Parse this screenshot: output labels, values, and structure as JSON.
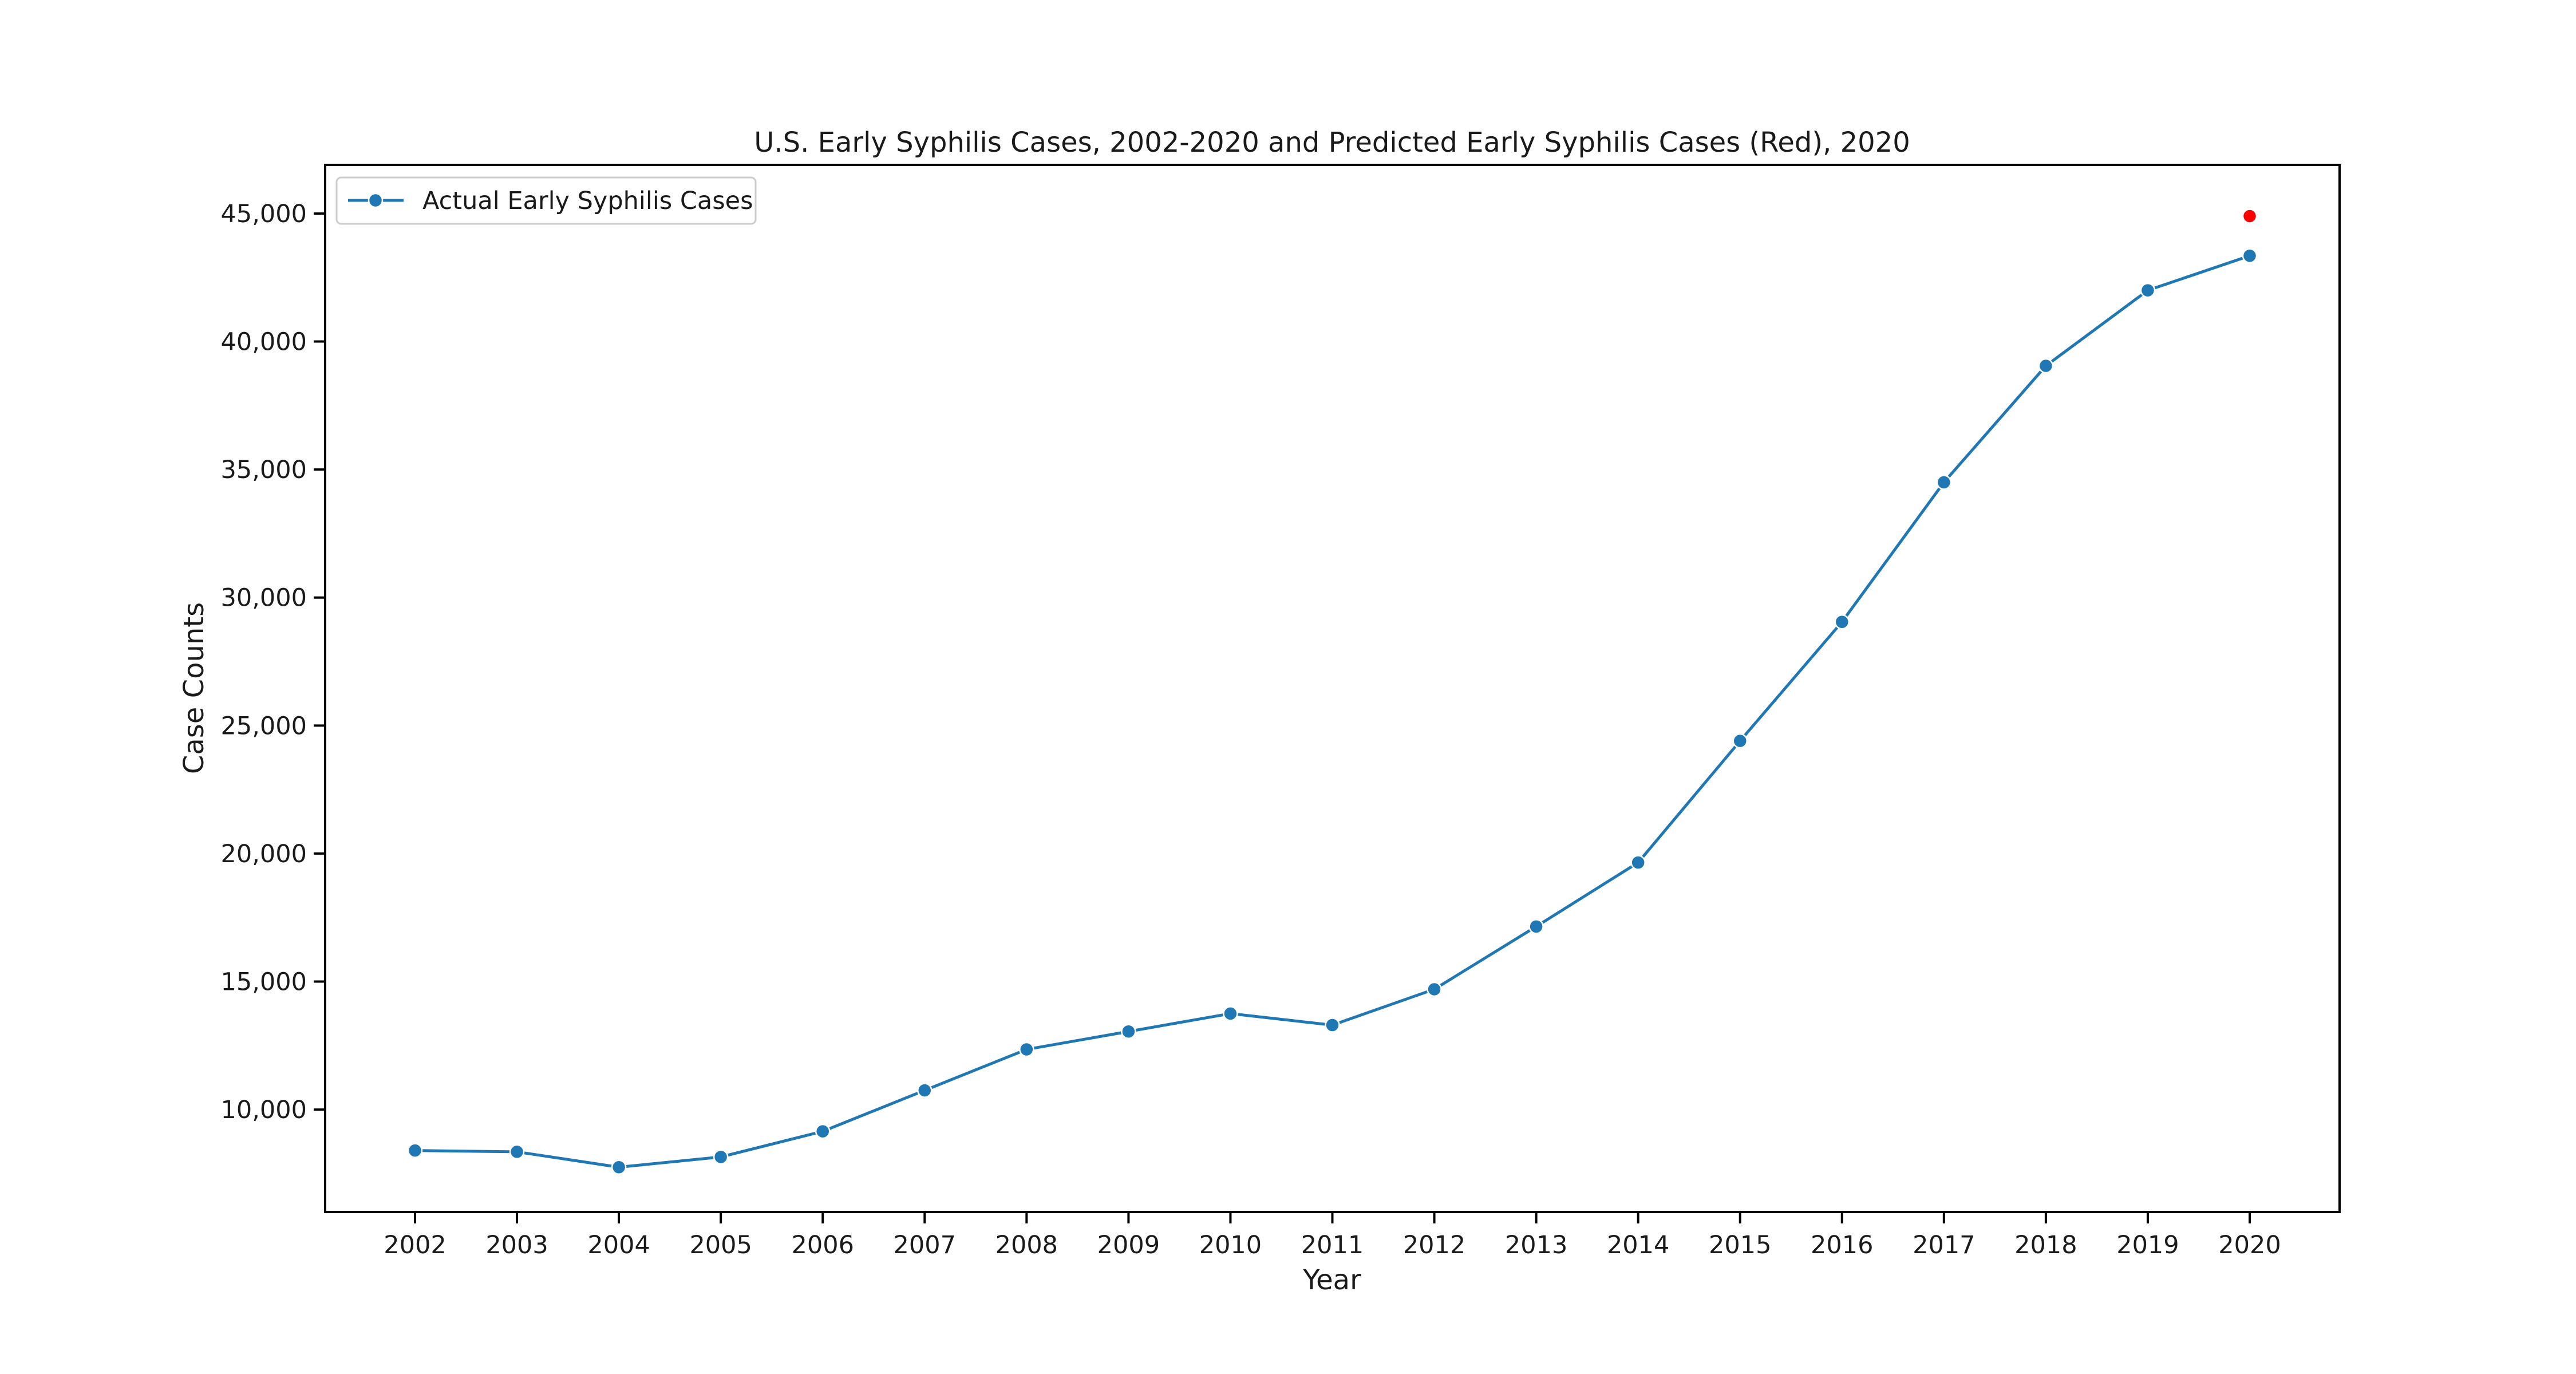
{
  "chart_data": {
    "type": "line",
    "title": "U.S. Early Syphilis Cases, 2002-2020 and Predicted Early Syphilis Cases (Red), 2020",
    "xlabel": "Year",
    "ylabel": "Case Counts",
    "categories": [
      "2002",
      "2003",
      "2004",
      "2005",
      "2006",
      "2007",
      "2008",
      "2009",
      "2010",
      "2011",
      "2012",
      "2013",
      "2014",
      "2015",
      "2016",
      "2017",
      "2018",
      "2019",
      "2020"
    ],
    "series": [
      {
        "name": "Actual Early Syphilis Cases",
        "color": "#1f77b4",
        "marker": "circle",
        "values": [
          8400,
          8350,
          7750,
          8150,
          9150,
          10750,
          12350,
          13050,
          13750,
          13300,
          14700,
          17150,
          19650,
          24400,
          29050,
          34500,
          39050,
          42000,
          43350
        ]
      },
      {
        "color": "#ff0000",
        "marker": "circle",
        "line": false,
        "points": [
          {
            "x": "2020",
            "y": 44900
          }
        ]
      }
    ],
    "ylim": [
      6000,
      46900
    ],
    "yticks": [
      10000,
      15000,
      20000,
      25000,
      30000,
      35000,
      40000,
      45000
    ],
    "ytick_labels": [
      "10,000",
      "15,000",
      "20,000",
      "25,000",
      "30,000",
      "35,000",
      "40,000",
      "45,000"
    ],
    "grid": false,
    "legend": {
      "position": "top-left"
    }
  }
}
